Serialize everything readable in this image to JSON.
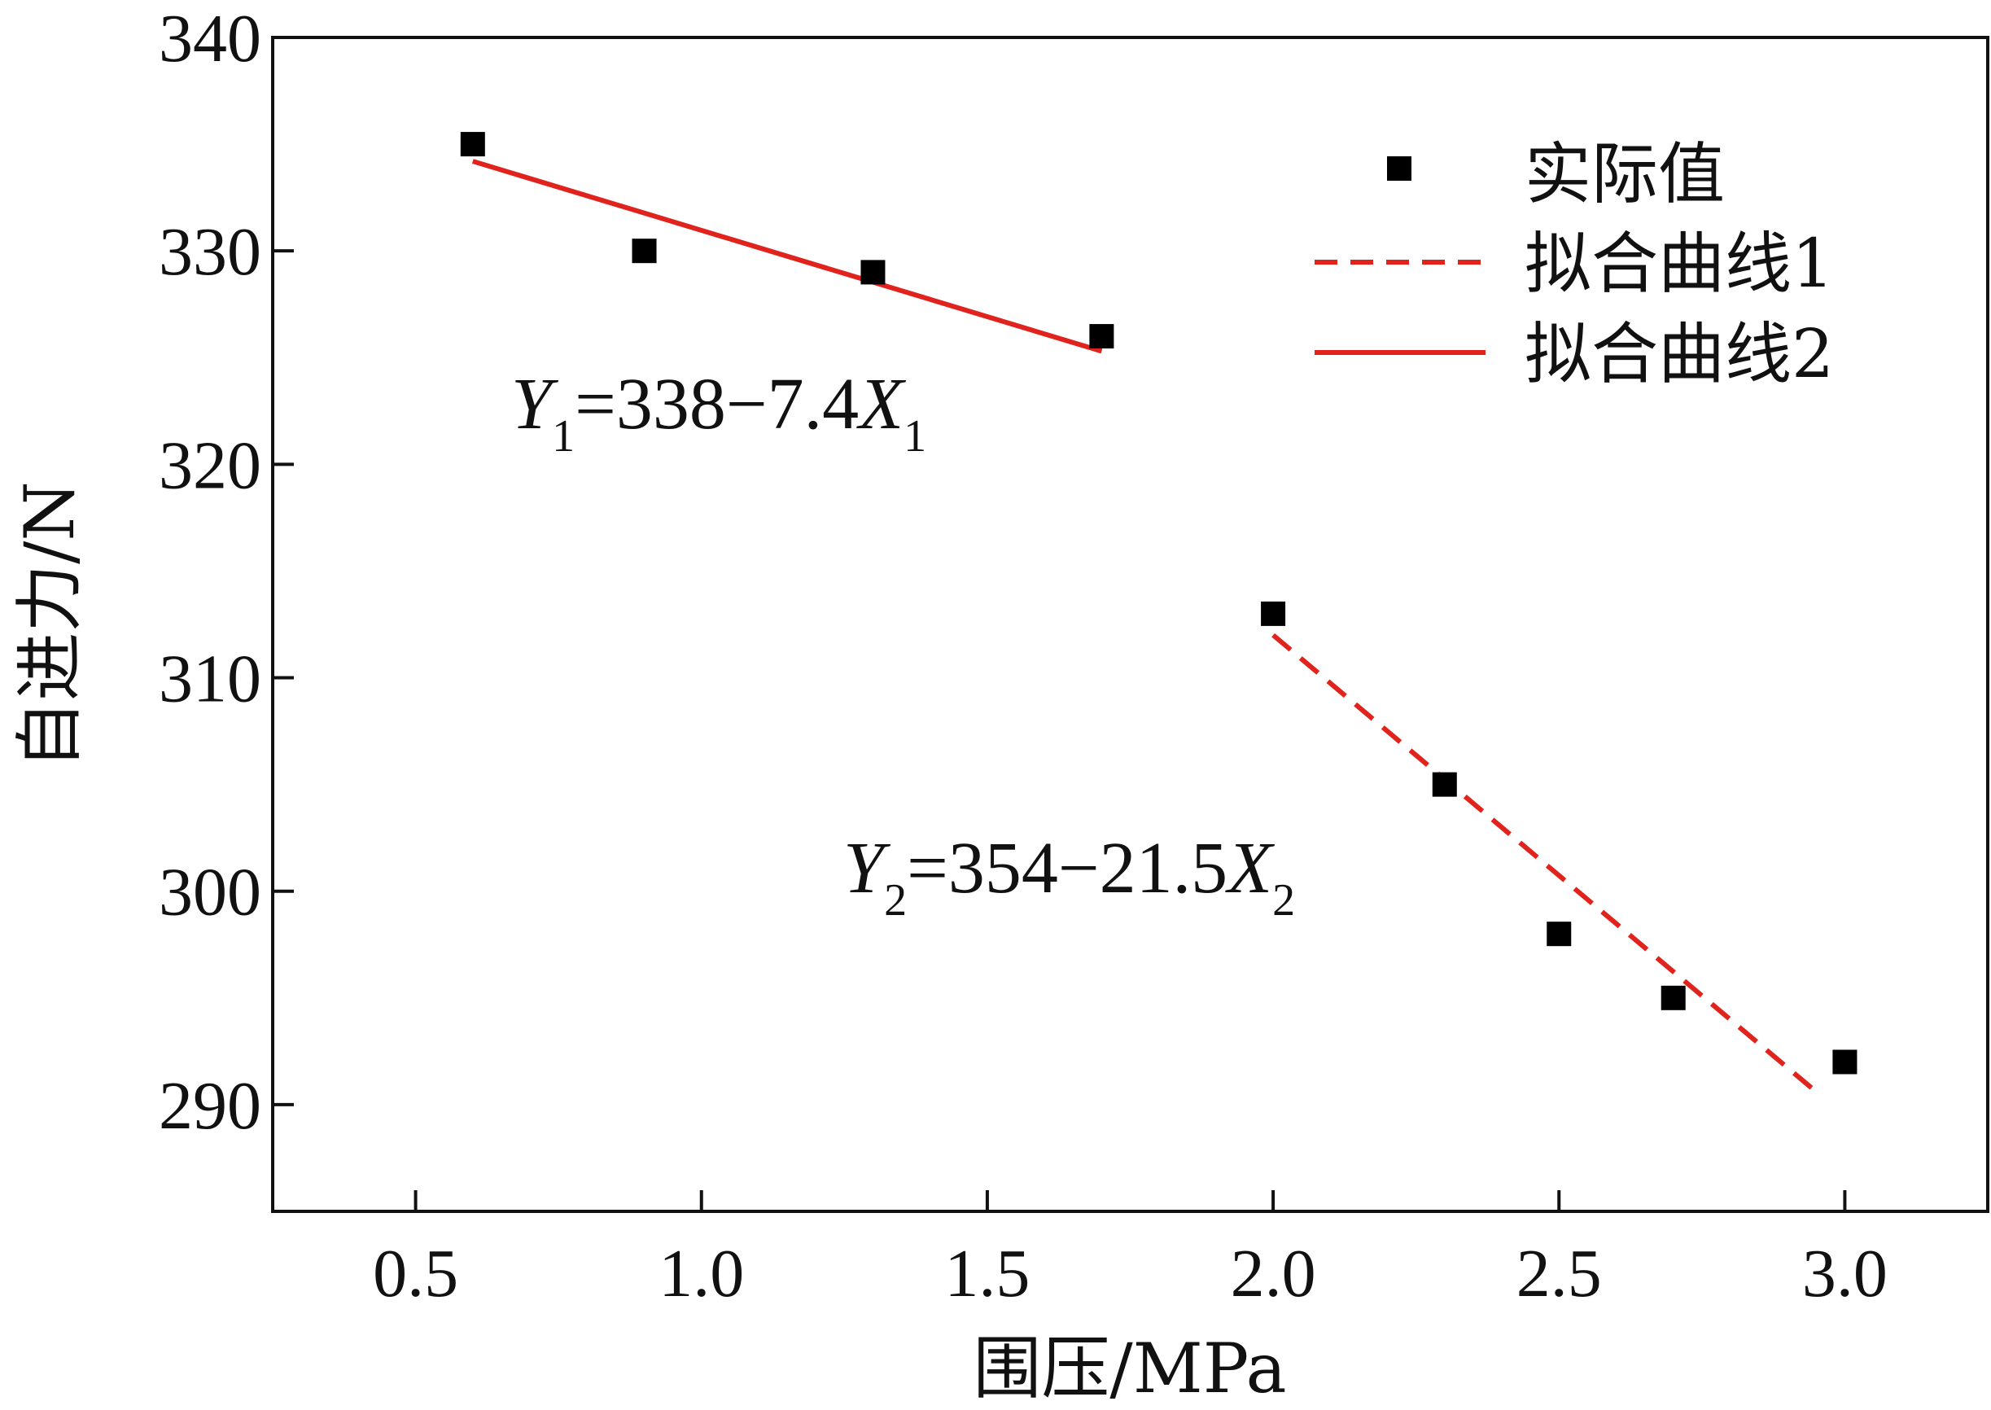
{
  "chart_data": {
    "type": "scatter",
    "xlabel": "围压/MPa",
    "ylabel": "自进力/N",
    "xlim": [
      0.25,
      3.25
    ],
    "ylim": [
      285,
      340
    ],
    "x_ticks": [
      0.5,
      1.0,
      1.5,
      2.0,
      2.5,
      3.0
    ],
    "x_tick_labels": [
      "0.5",
      "1.0",
      "1.5",
      "2.0",
      "2.5",
      "3.0"
    ],
    "y_ticks": [
      290,
      300,
      310,
      320,
      330,
      340
    ],
    "y_tick_labels": [
      "290",
      "300",
      "310",
      "320",
      "330",
      "340"
    ],
    "grid": false,
    "legend_position": "top-right",
    "series": [
      {
        "name": "实际值",
        "kind": "scatter",
        "marker": "square",
        "color": "#000000",
        "x": [
          0.6,
          0.9,
          1.3,
          1.7,
          2.0,
          2.3,
          2.5,
          2.7,
          3.0
        ],
        "y": [
          335,
          330,
          329,
          326,
          313,
          305,
          298,
          295,
          292
        ]
      },
      {
        "name": "拟合曲线1",
        "kind": "line",
        "dash": "dashed",
        "color": "#e0231c",
        "x": [
          2.0,
          2.95
        ],
        "y": [
          312,
          290.6
        ]
      },
      {
        "name": "拟合曲线2",
        "kind": "line",
        "dash": "solid",
        "color": "#e0231c",
        "x": [
          0.6,
          1.7
        ],
        "y": [
          334.2,
          325.3
        ]
      }
    ],
    "annotations": [
      {
        "text": "Y1=338−7.4X1",
        "parts": [
          "Y",
          "1",
          "=338−7.4",
          "X",
          "1"
        ]
      },
      {
        "text": "Y2=354−21.5X2",
        "parts": [
          "Y",
          "2",
          "=354−21.5",
          "X",
          "2"
        ]
      }
    ]
  }
}
